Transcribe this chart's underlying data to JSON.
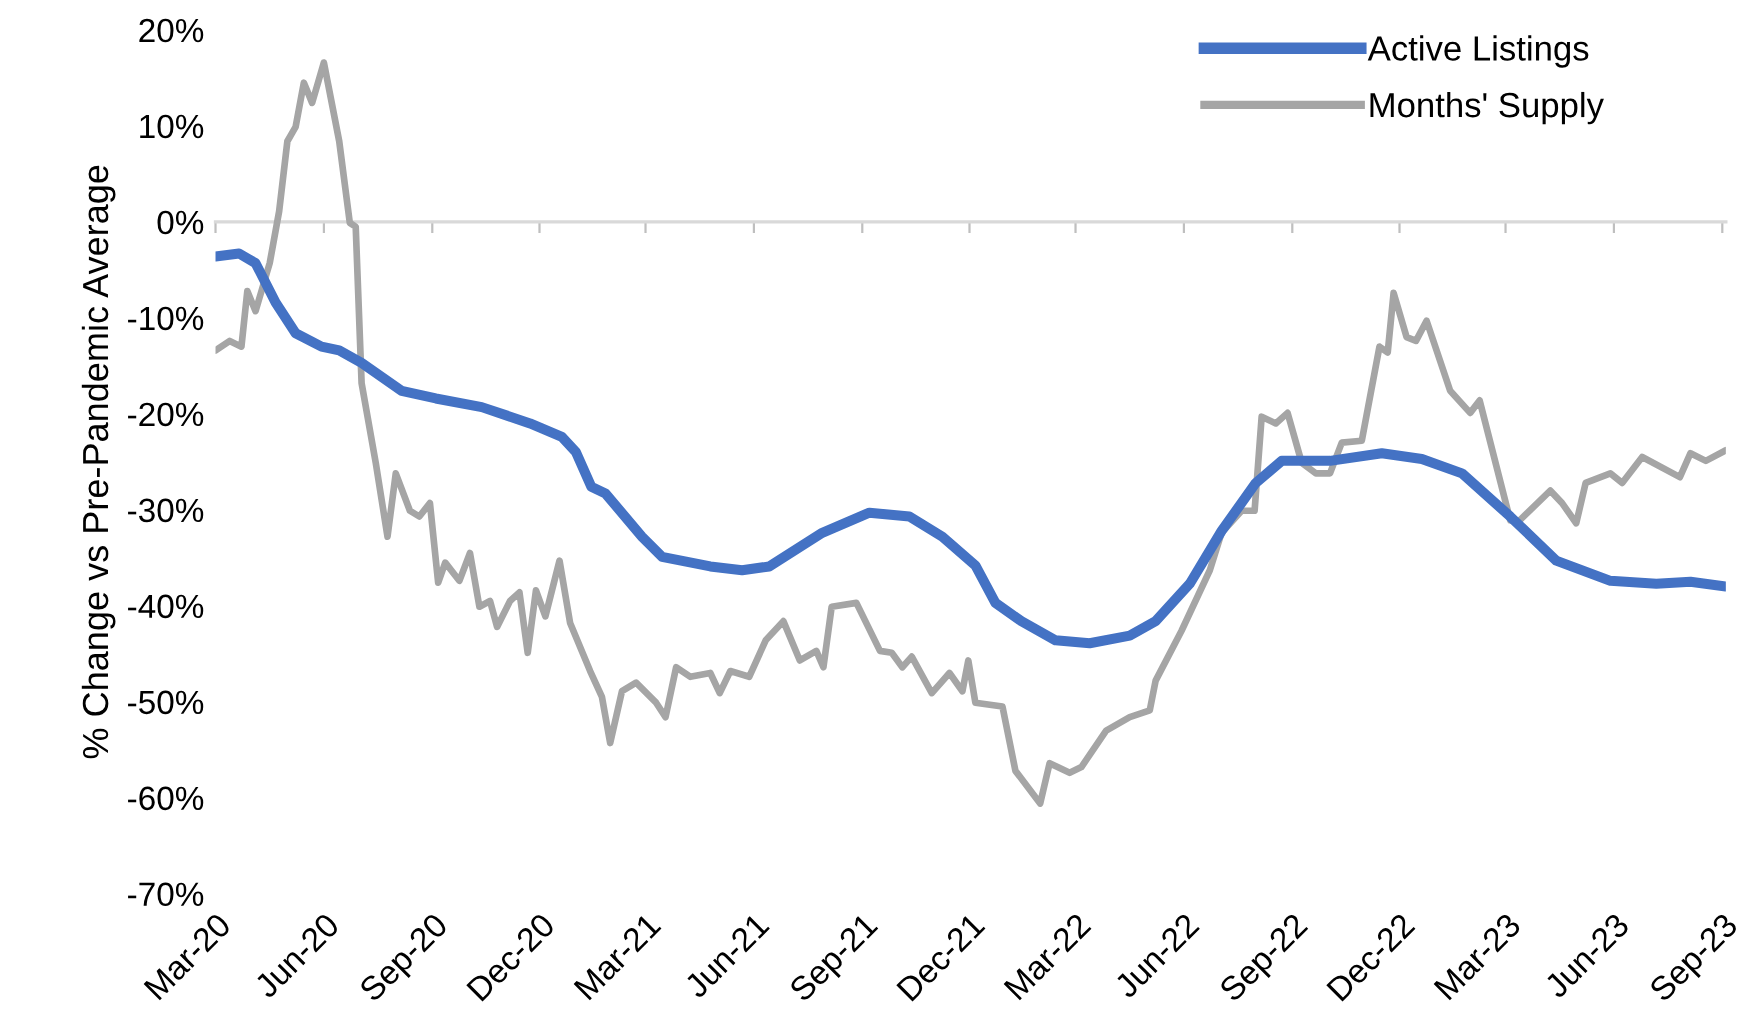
{
  "chart_data": {
    "type": "line",
    "ylabel": "% Change vs Pre-Pandemic Average",
    "legend": "top right",
    "line_style": "solid",
    "marker": "none",
    "xlim": [
      "2020-03-01",
      "2023-09-04"
    ],
    "xticks": [
      {
        "value": "2020-03-01",
        "label": "Mar-20"
      },
      {
        "value": "2020-06-01",
        "label": "Jun-20"
      },
      {
        "value": "2020-09-01",
        "label": "Sep-20"
      },
      {
        "value": "2020-12-01",
        "label": "Dec-20"
      },
      {
        "value": "2021-03-01",
        "label": "Mar-21"
      },
      {
        "value": "2021-06-01",
        "label": "Jun-21"
      },
      {
        "value": "2021-09-01",
        "label": "Sep-21"
      },
      {
        "value": "2021-12-01",
        "label": "Dec-21"
      },
      {
        "value": "2022-03-01",
        "label": "Mar-22"
      },
      {
        "value": "2022-06-01",
        "label": "Jun-22"
      },
      {
        "value": "2022-09-01",
        "label": "Sep-22"
      },
      {
        "value": "2022-12-01",
        "label": "Dec-22"
      },
      {
        "value": "2023-03-01",
        "label": "Mar-23"
      },
      {
        "value": "2023-06-01",
        "label": "Jun-23"
      },
      {
        "value": "2023-09-01",
        "label": "Sep-23"
      }
    ],
    "ylim": [
      -70,
      20
    ],
    "yticks": [
      {
        "value": -70,
        "label": "-70%"
      },
      {
        "value": -60,
        "label": "-60%"
      },
      {
        "value": -50,
        "label": "-50%"
      },
      {
        "value": -40,
        "label": "-40%"
      },
      {
        "value": -30,
        "label": "-30%"
      },
      {
        "value": -20,
        "label": "-20%"
      },
      {
        "value": -10,
        "label": "-10%"
      },
      {
        "value": 0,
        "label": "0%"
      },
      {
        "value": 10,
        "label": "10%"
      },
      {
        "value": 20,
        "label": "20%"
      }
    ],
    "series": [
      {
        "name": "Active Listings",
        "color": "#4472c4",
        "x": [
          "2020-03-01",
          "2020-03-21",
          "2020-04-04",
          "2020-04-21",
          "2020-05-08",
          "2020-05-30",
          "2020-06-14",
          "2020-07-03",
          "2020-08-06",
          "2020-09-04",
          "2020-10-13",
          "2020-11-23",
          "2020-12-20",
          "2021-01-01",
          "2021-01-14",
          "2021-01-26",
          "2021-02-26",
          "2021-03-15",
          "2021-04-25",
          "2021-05-22",
          "2021-06-14",
          "2021-07-29",
          "2021-09-07",
          "2021-10-11",
          "2021-11-08",
          "2021-12-06",
          "2021-12-23",
          "2022-01-14",
          "2022-02-12",
          "2022-03-13",
          "2022-04-16",
          "2022-05-08",
          "2022-06-06",
          "2022-07-03",
          "2022-08-01",
          "2022-08-23",
          "2022-10-03",
          "2022-11-16",
          "2022-12-20",
          "2023-01-23",
          "2023-03-05",
          "2023-04-13",
          "2023-05-29",
          "2023-07-07",
          "2023-08-05",
          "2023-09-04"
        ],
        "values": [
          -3.6,
          -3.3,
          -4.3,
          -8.4,
          -11.6,
          -13.0,
          -13.4,
          -14.7,
          -17.6,
          -18.4,
          -19.3,
          -21.0,
          -22.4,
          -24.0,
          -27.6,
          -28.3,
          -32.8,
          -34.9,
          -35.9,
          -36.3,
          -35.9,
          -32.4,
          -30.3,
          -30.7,
          -32.8,
          -35.8,
          -39.7,
          -41.6,
          -43.6,
          -43.9,
          -43.1,
          -41.6,
          -37.7,
          -32.2,
          -27.2,
          -24.9,
          -24.9,
          -24.1,
          -24.7,
          -26.2,
          -30.7,
          -35.3,
          -37.4,
          -37.7,
          -37.5,
          -38.0
        ]
      },
      {
        "name": "Months' Supply",
        "color": "#a5a5a5",
        "x": [
          "2020-03-01",
          "2020-03-13",
          "2020-03-23",
          "2020-03-28",
          "2020-04-04",
          "2020-04-16",
          "2020-04-24",
          "2020-05-01",
          "2020-05-08",
          "2020-05-15",
          "2020-05-22",
          "2020-06-01",
          "2020-06-14",
          "2020-06-23",
          "2020-06-28",
          "2020-07-03",
          "2020-07-15",
          "2020-07-25",
          "2020-08-01",
          "2020-08-13",
          "2020-08-21",
          "2020-08-30",
          "2020-09-06",
          "2020-09-12",
          "2020-09-24",
          "2020-10-03",
          "2020-10-11",
          "2020-10-20",
          "2020-10-26",
          "2020-11-06",
          "2020-11-14",
          "2020-11-21",
          "2020-11-28",
          "2020-12-06",
          "2020-12-18",
          "2020-12-27",
          "2021-01-13",
          "2021-01-23",
          "2021-01-30",
          "2021-02-09",
          "2021-02-21",
          "2021-03-10",
          "2021-03-18",
          "2021-03-27",
          "2021-04-08",
          "2021-04-25",
          "2021-05-03",
          "2021-05-12",
          "2021-05-28",
          "2021-06-11",
          "2021-06-26",
          "2021-07-10",
          "2021-07-24",
          "2021-07-30",
          "2021-08-06",
          "2021-08-27",
          "2021-09-16",
          "2021-09-26",
          "2021-10-05",
          "2021-10-13",
          "2021-10-30",
          "2021-11-14",
          "2021-11-25",
          "2021-11-30",
          "2021-12-06",
          "2021-12-29",
          "2022-01-09",
          "2022-01-30",
          "2022-02-07",
          "2022-02-24",
          "2022-03-06",
          "2022-03-27",
          "2022-04-16",
          "2022-05-03",
          "2022-05-08",
          "2022-05-30",
          "2022-06-23",
          "2022-07-03",
          "2022-07-20",
          "2022-07-31",
          "2022-08-06",
          "2022-08-18",
          "2022-08-28",
          "2022-09-09",
          "2022-09-21",
          "2022-10-03",
          "2022-10-13",
          "2022-10-30",
          "2022-11-14",
          "2022-11-21",
          "2022-11-26",
          "2022-12-07",
          "2022-12-15",
          "2022-12-24",
          "2023-01-13",
          "2023-01-30",
          "2023-02-07",
          "2023-03-05",
          "2023-03-13",
          "2023-04-08",
          "2023-04-18",
          "2023-04-30",
          "2023-05-08",
          "2023-05-29",
          "2023-06-08",
          "2023-06-25",
          "2023-07-27",
          "2023-08-05",
          "2023-08-18",
          "2023-09-04"
        ],
        "values": [
          -13.4,
          -12.4,
          -13.0,
          -7.2,
          -9.3,
          -4.3,
          1.1,
          8.4,
          9.9,
          14.5,
          12.4,
          16.6,
          8.4,
          -0.1,
          -0.5,
          -16.8,
          -25.1,
          -32.8,
          -26.2,
          -30.1,
          -30.7,
          -29.3,
          -37.6,
          -35.5,
          -37.4,
          -34.5,
          -40.1,
          -39.5,
          -42.2,
          -39.5,
          -38.6,
          -44.9,
          -38.4,
          -41.1,
          -35.3,
          -41.8,
          -46.8,
          -49.5,
          -54.3,
          -48.9,
          -48.0,
          -50.1,
          -51.6,
          -46.4,
          -47.4,
          -47.0,
          -49.1,
          -46.8,
          -47.4,
          -43.6,
          -41.6,
          -45.7,
          -44.7,
          -46.4,
          -40.1,
          -39.7,
          -44.7,
          -44.9,
          -46.4,
          -45.3,
          -49.1,
          -47.0,
          -48.9,
          -45.7,
          -50.1,
          -50.5,
          -57.2,
          -60.6,
          -56.4,
          -57.4,
          -56.8,
          -53.0,
          -51.6,
          -50.9,
          -47.8,
          -42.6,
          -36.3,
          -32.4,
          -30.1,
          -30.1,
          -20.3,
          -21.0,
          -19.9,
          -25.1,
          -26.2,
          -26.2,
          -23.0,
          -22.8,
          -13.0,
          -13.6,
          -7.4,
          -12.0,
          -12.4,
          -10.3,
          -17.6,
          -19.9,
          -18.6,
          -31.1,
          -31.1,
          -28.0,
          -29.3,
          -31.4,
          -27.2,
          -26.2,
          -27.2,
          -24.5,
          -26.6,
          -24.1,
          -24.9,
          -23.8
        ]
      }
    ]
  }
}
